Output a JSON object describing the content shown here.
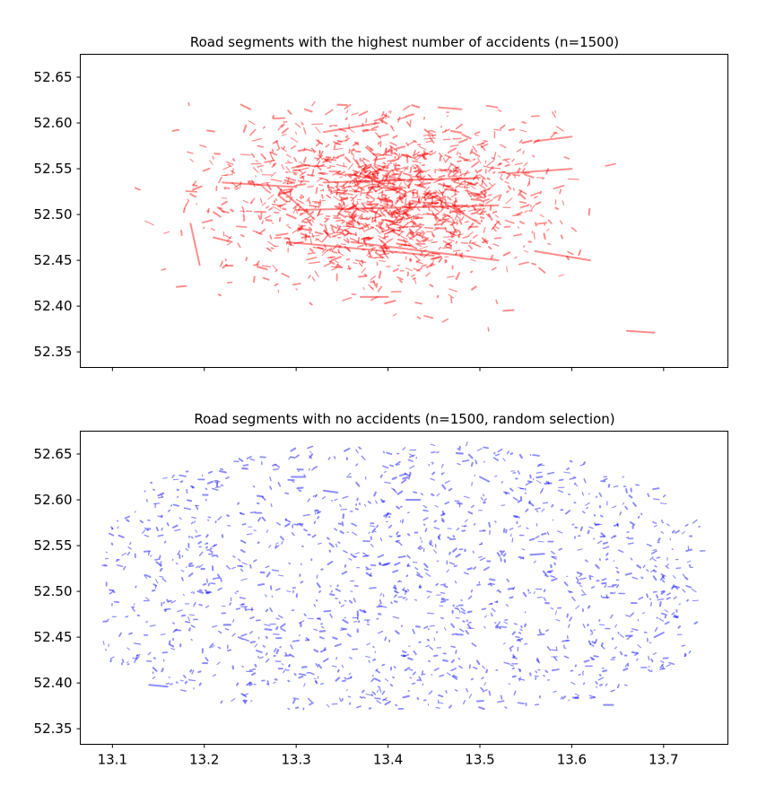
{
  "chart_data": [
    {
      "type": "scatter",
      "title": "Road segments with the highest number of accidents (n=1500)",
      "xlabel": "",
      "ylabel": "",
      "xlim": [
        13.065,
        13.77
      ],
      "ylim": [
        52.333,
        52.675
      ],
      "xticks": [
        13.1,
        13.2,
        13.3,
        13.4,
        13.5,
        13.6,
        13.7
      ],
      "xtick_labels_visible": false,
      "yticks": [
        52.35,
        52.4,
        52.45,
        52.5,
        52.55,
        52.6,
        52.65
      ],
      "ytick_labels": [
        "52.35",
        "52.40",
        "52.45",
        "52.50",
        "52.55",
        "52.60",
        "52.65"
      ],
      "color": "#ff0000",
      "alpha": 0.45,
      "n": 1500,
      "extent": {
        "x": [
          13.125,
          13.69
        ],
        "y": [
          52.37,
          52.62
        ]
      },
      "center": [
        13.4,
        52.515
      ],
      "spread": [
        0.085,
        0.045
      ],
      "segments": [
        [
          [
            13.29,
            52.47
          ],
          [
            13.45,
            52.455
          ]
        ],
        [
          [
            13.33,
            52.535
          ],
          [
            13.5,
            52.54
          ]
        ],
        [
          [
            13.22,
            52.535
          ],
          [
            13.3,
            52.53
          ]
        ],
        [
          [
            13.3,
            52.505
          ],
          [
            13.52,
            52.51
          ]
        ],
        [
          [
            13.36,
            52.47
          ],
          [
            13.52,
            52.45
          ]
        ],
        [
          [
            13.28,
            52.53
          ],
          [
            13.32,
            52.495
          ]
        ],
        [
          [
            13.185,
            52.49
          ],
          [
            13.195,
            52.445
          ]
        ],
        [
          [
            13.24,
            52.62
          ],
          [
            13.25,
            52.615
          ]
        ],
        [
          [
            13.33,
            52.59
          ],
          [
            13.39,
            52.6
          ]
        ],
        [
          [
            13.455,
            52.617
          ],
          [
            13.48,
            52.615
          ]
        ],
        [
          [
            13.37,
            52.545
          ],
          [
            13.42,
            52.52
          ]
        ],
        [
          [
            13.44,
            52.525
          ],
          [
            13.5,
            52.49
          ]
        ],
        [
          [
            13.56,
            52.46
          ],
          [
            13.62,
            52.45
          ]
        ],
        [
          [
            13.66,
            52.373
          ],
          [
            13.69,
            52.371
          ]
        ],
        [
          [
            13.53,
            52.545
          ],
          [
            13.6,
            52.55
          ]
        ],
        [
          [
            13.56,
            52.58
          ],
          [
            13.6,
            52.585
          ]
        ],
        [
          [
            13.21,
            52.475
          ],
          [
            13.23,
            52.47
          ]
        ],
        [
          [
            13.37,
            52.41
          ],
          [
            13.4,
            52.41
          ]
        ],
        [
          [
            13.13,
            52.527
          ],
          [
            13.125,
            52.529
          ]
        ],
        [
          [
            13.17,
            52.421
          ],
          [
            13.18,
            52.422
          ]
        ]
      ],
      "series": [
        {
          "name": ""
        }
      ]
    },
    {
      "type": "scatter",
      "title": "Road segments with no accidents (n=1500, random selection)",
      "xlabel": "",
      "ylabel": "",
      "xlim": [
        13.065,
        13.77
      ],
      "ylim": [
        52.333,
        52.675
      ],
      "xticks": [
        13.1,
        13.2,
        13.3,
        13.4,
        13.5,
        13.6,
        13.7
      ],
      "xtick_labels": [
        "13.1",
        "13.2",
        "13.3",
        "13.4",
        "13.5",
        "13.6",
        "13.7"
      ],
      "yticks": [
        52.35,
        52.4,
        52.45,
        52.5,
        52.55,
        52.6,
        52.65
      ],
      "ytick_labels": [
        "52.35",
        "52.40",
        "52.45",
        "52.50",
        "52.55",
        "52.60",
        "52.65"
      ],
      "color": "#0000ff",
      "alpha": 0.45,
      "n": 1500,
      "extent": {
        "x": [
          13.09,
          13.74
        ],
        "y": [
          52.37,
          52.66
        ]
      },
      "center": [
        13.41,
        52.51
      ],
      "spread": [
        0.16,
        0.075
      ],
      "segments": [
        [
          [
            13.14,
            52.398
          ],
          [
            13.16,
            52.396
          ]
        ],
        [
          [
            13.555,
            52.54
          ],
          [
            13.57,
            52.541
          ]
        ],
        [
          [
            13.69,
            52.45
          ],
          [
            13.7,
            52.455
          ]
        ],
        [
          [
            13.295,
            52.625
          ],
          [
            13.31,
            52.625
          ]
        ],
        [
          [
            13.635,
            52.376
          ],
          [
            13.645,
            52.376
          ]
        ],
        [
          [
            13.33,
            52.61
          ],
          [
            13.345,
            52.608
          ]
        ],
        [
          [
            13.42,
            52.6
          ],
          [
            13.435,
            52.6
          ]
        ],
        [
          [
            13.5,
            52.625
          ],
          [
            13.51,
            52.62
          ]
        ]
      ],
      "series": [
        {
          "name": ""
        }
      ]
    }
  ]
}
